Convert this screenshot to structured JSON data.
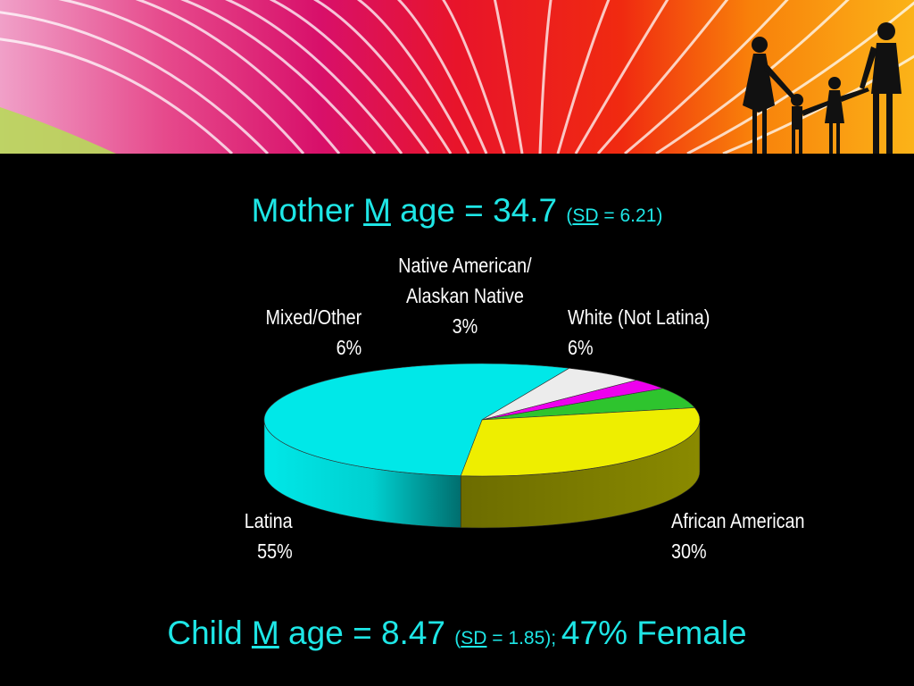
{
  "header": {
    "mother_prefix": "Mother ",
    "mother_m": "M",
    "mother_mid": " age = 34.7 ",
    "mother_sd_open": "(",
    "mother_sd": "SD",
    "mother_sd_rest": " = 6.21)"
  },
  "footer": {
    "child_prefix": "Child ",
    "child_m": "M",
    "child_mid": " age = 8.47 ",
    "child_sd_open": "(",
    "child_sd": "SD",
    "child_sd_rest": " = 1.85); ",
    "child_female": "47% Female"
  },
  "chart_data": {
    "type": "pie",
    "title": "",
    "slices": [
      {
        "label": "White (Not Latina)",
        "pct_label": "6%",
        "value": 6,
        "color": "#2ec42e"
      },
      {
        "label": "African American",
        "pct_label": "30%",
        "value": 30,
        "color": "#eeee00"
      },
      {
        "label": "Latina",
        "pct_label": "55%",
        "value": 55,
        "color": "#00e8e8"
      },
      {
        "label": "Mixed/Other",
        "pct_label": "6%",
        "value": 6,
        "color": "#ececec"
      },
      {
        "label": "Native American/ Alaskan Native",
        "label_lines": [
          "Native American/",
          "Alaskan Native"
        ],
        "pct_label": "3%",
        "value": 3,
        "color": "#ee00ee"
      }
    ],
    "style": "3d-pie"
  },
  "colors": {
    "title_color": "#1ee6e6",
    "label_color": "#ffffff",
    "background": "#000000"
  }
}
